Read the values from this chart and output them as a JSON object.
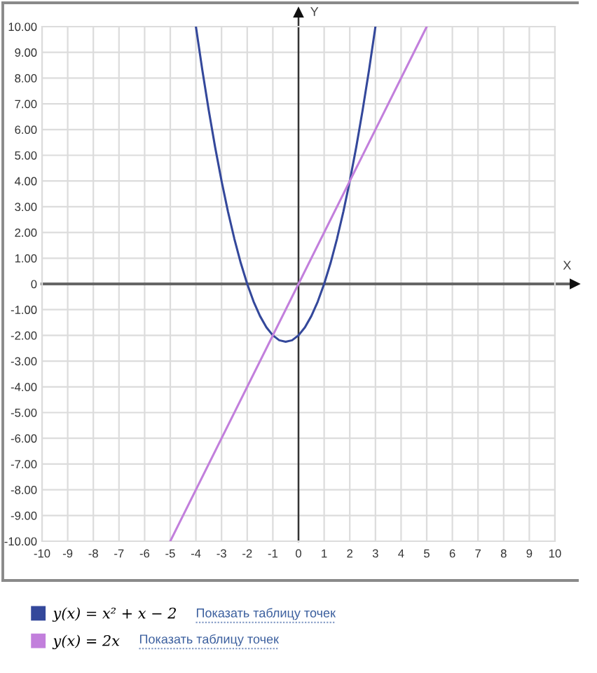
{
  "chart_data": {
    "type": "line",
    "xlabel": "X",
    "ylabel": "Y",
    "xlim": [
      -10,
      10
    ],
    "ylim": [
      -10,
      10
    ],
    "xticks": [
      -10,
      -9,
      -8,
      -7,
      -6,
      -5,
      -4,
      -3,
      -2,
      -1,
      0,
      1,
      2,
      3,
      4,
      5,
      6,
      7,
      8,
      9,
      10
    ],
    "yticks": [
      {
        "value": -10,
        "label": "-10.00"
      },
      {
        "value": -9,
        "label": "-9.00"
      },
      {
        "value": -8,
        "label": "-8.00"
      },
      {
        "value": -7,
        "label": "-7.00"
      },
      {
        "value": -6,
        "label": "-6.00"
      },
      {
        "value": -5,
        "label": "-5.00"
      },
      {
        "value": -4,
        "label": "-4.00"
      },
      {
        "value": -3,
        "label": "-3.00"
      },
      {
        "value": -2,
        "label": "-2.00"
      },
      {
        "value": -1,
        "label": "-1.00"
      },
      0,
      {
        "value": 1,
        "label": "1.00"
      },
      {
        "value": 2,
        "label": "2.00"
      },
      {
        "value": 3,
        "label": "3.00"
      },
      {
        "value": 4,
        "label": "4.00"
      },
      {
        "value": 5,
        "label": "5.00"
      },
      {
        "value": 6,
        "label": "6.00"
      },
      {
        "value": 7,
        "label": "7.00"
      },
      {
        "value": 8,
        "label": "8.00"
      },
      {
        "value": 9,
        "label": "9.00"
      },
      {
        "value": 10,
        "label": "10.00"
      }
    ],
    "grid": true,
    "legend": "bottom",
    "series": [
      {
        "name": "y(x) = x² + x − 2",
        "color": "#34489b",
        "x": [
          -4,
          -3.75,
          -3.5,
          -3.25,
          -3,
          -2.75,
          -2.5,
          -2.25,
          -2,
          -1.75,
          -1.5,
          -1.25,
          -1,
          -0.75,
          -0.5,
          -0.25,
          0,
          0.25,
          0.5,
          0.75,
          1,
          1.25,
          1.5,
          1.75,
          2,
          2.25,
          2.5,
          2.75,
          3
        ],
        "values": [
          10,
          8.31,
          6.75,
          5.31,
          4,
          2.81,
          1.75,
          0.81,
          0,
          -0.69,
          -1.25,
          -1.69,
          -2,
          -2.19,
          -2.25,
          -2.19,
          -2,
          -1.69,
          -1.25,
          -0.69,
          0,
          0.81,
          1.75,
          2.81,
          4,
          5.31,
          6.75,
          8.31,
          10
        ]
      },
      {
        "name": "y(x) = 2x",
        "color": "#c27fdc",
        "x": [
          -5,
          5
        ],
        "values": [
          -10,
          10
        ]
      }
    ],
    "ref_lines": [
      {
        "axis": "y",
        "value": 0,
        "color": "#666666"
      },
      {
        "axis": "x",
        "value": 0,
        "color": "#333333"
      }
    ],
    "annotations": [
      "Показать таблицу точек",
      "Показать таблицу точек"
    ]
  }
}
